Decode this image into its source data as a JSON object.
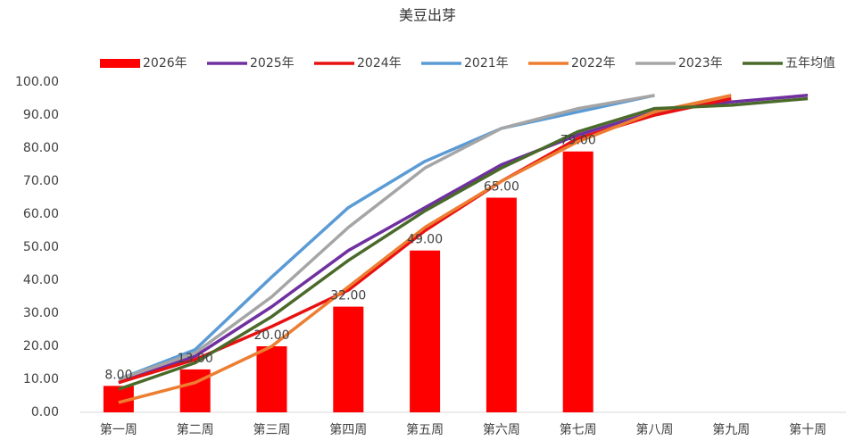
{
  "chart_data": {
    "type": "combo",
    "title": "美豆出芽",
    "categories": [
      "第一周",
      "第二周",
      "第三周",
      "第四周",
      "第五周",
      "第六周",
      "第七周",
      "第八周",
      "第九周",
      "第十周"
    ],
    "ylim": [
      0,
      100
    ],
    "yticks": [
      {
        "value": 0,
        "label": "0.00"
      },
      {
        "value": 10,
        "label": "10.00"
      },
      {
        "value": 20,
        "label": "20.00"
      },
      {
        "value": 30,
        "label": "30.00"
      },
      {
        "value": 40,
        "label": "40.00"
      },
      {
        "value": 50,
        "label": "50.00"
      },
      {
        "value": 60,
        "label": "60.00"
      },
      {
        "value": 70,
        "label": "70.00"
      },
      {
        "value": 80,
        "label": "80.00"
      },
      {
        "value": 90,
        "label": "90.00"
      },
      {
        "value": 100,
        "label": "100.00"
      }
    ],
    "grid": false,
    "legend": "top",
    "series": [
      {
        "name": "2026年",
        "type": "bar",
        "color": "#ff0000",
        "values": [
          8,
          13,
          20,
          32,
          49,
          65,
          79,
          null,
          null,
          null
        ],
        "value_labels": [
          "8.00",
          "13.00",
          "20.00",
          "32.00",
          "49.00",
          "65.00",
          "79.00",
          null,
          null,
          null
        ]
      },
      {
        "name": "2025年",
        "type": "line",
        "color": "#7030a0",
        "values": [
          9,
          17,
          32,
          49,
          62,
          75,
          84,
          91,
          94,
          96
        ]
      },
      {
        "name": "2024年",
        "type": "line",
        "color": "#e81010",
        "values": [
          9,
          16,
          26,
          37,
          55,
          70,
          83,
          90,
          95,
          null
        ]
      },
      {
        "name": "2021年",
        "type": "line",
        "color": "#5b9bd5",
        "values": [
          10,
          19,
          41,
          62,
          76,
          86,
          91,
          96,
          null,
          null
        ]
      },
      {
        "name": "2022年",
        "type": "line",
        "color": "#ed7d31",
        "values": [
          3,
          9,
          20,
          38,
          56,
          70,
          82,
          91,
          96,
          null
        ]
      },
      {
        "name": "2023年",
        "type": "line",
        "color": "#a5a5a5",
        "values": [
          10,
          18,
          35,
          56,
          74,
          86,
          92,
          96,
          null,
          null
        ]
      },
      {
        "name": "五年均值",
        "type": "line",
        "color": "#4a6a2a",
        "values": [
          7,
          15,
          29,
          46,
          61,
          74,
          85,
          92,
          93,
          95
        ]
      }
    ]
  }
}
